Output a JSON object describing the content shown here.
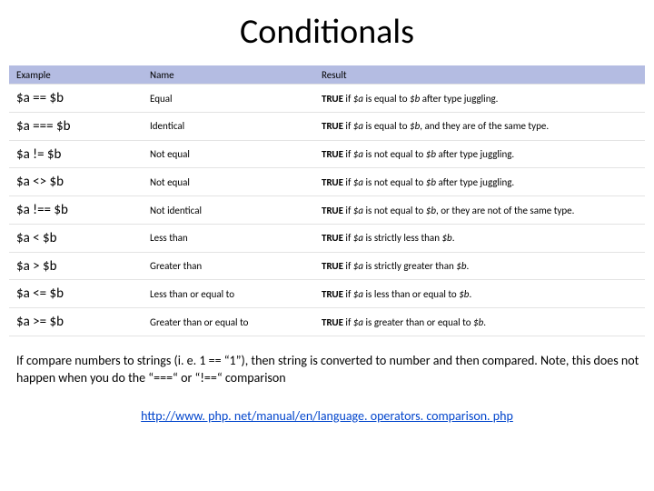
{
  "title": "Conditionals",
  "columns": [
    "Example",
    "Name",
    "Result"
  ],
  "rows": [
    {
      "example": "$a == $b",
      "name": "Equal",
      "result_lead": "TRUE",
      "result_t1": " if ",
      "result_v1": "$a",
      "result_t2": " is equal to ",
      "result_v2": "$b",
      "result_tail": " after type juggling."
    },
    {
      "example": "$a === $b",
      "name": "Identical",
      "result_lead": "TRUE",
      "result_t1": " if ",
      "result_v1": "$a",
      "result_t2": " is equal to ",
      "result_v2": "$b",
      "result_tail": ", and they are of the same type."
    },
    {
      "example": "$a != $b",
      "name": "Not equal",
      "result_lead": "TRUE",
      "result_t1": " if ",
      "result_v1": "$a",
      "result_t2": " is not equal to ",
      "result_v2": "$b",
      "result_tail": " after type juggling."
    },
    {
      "example": "$a <> $b",
      "name": "Not equal",
      "result_lead": "TRUE",
      "result_t1": " if ",
      "result_v1": "$a",
      "result_t2": " is not equal to ",
      "result_v2": "$b",
      "result_tail": " after type juggling."
    },
    {
      "example": "$a !== $b",
      "name": "Not identical",
      "result_lead": "TRUE",
      "result_t1": " if ",
      "result_v1": "$a",
      "result_t2": " is not equal to ",
      "result_v2": "$b",
      "result_tail": ", or they are not of the same type."
    },
    {
      "example": "$a < $b",
      "name": "Less than",
      "result_lead": "TRUE",
      "result_t1": " if ",
      "result_v1": "$a",
      "result_t2": " is strictly less than ",
      "result_v2": "$b",
      "result_tail": "."
    },
    {
      "example": "$a > $b",
      "name": "Greater than",
      "result_lead": "TRUE",
      "result_t1": " if ",
      "result_v1": "$a",
      "result_t2": " is strictly greater than ",
      "result_v2": "$b",
      "result_tail": "."
    },
    {
      "example": "$a <= $b",
      "name": "Less than or equal to",
      "result_lead": "TRUE",
      "result_t1": " if ",
      "result_v1": "$a",
      "result_t2": " is less than or equal to ",
      "result_v2": "$b",
      "result_tail": "."
    },
    {
      "example": "$a >= $b",
      "name": "Greater than or equal to",
      "result_lead": "TRUE",
      "result_t1": " if ",
      "result_v1": "$a",
      "result_t2": " is greater than or equal to ",
      "result_v2": "$b",
      "result_tail": "."
    }
  ],
  "note": "If compare numbers to strings (i. e.  1 == “1”), then string is converted to number and then compared. Note, this does not happen when you do the “===“ or “!==“ comparison",
  "link_text": "http://www. php. net/manual/en/language. operators. comparison. php",
  "colors": {
    "header_bg": "#b4bce2",
    "row_border": "#e3e3e3",
    "link": "#0044cc",
    "text": "#000000",
    "background": "#ffffff"
  },
  "fonts": {
    "title_size_pt": 28,
    "example_size_pt": 11,
    "body_size_pt": 8,
    "note_size_pt": 11
  },
  "table_layout": {
    "col_widths_pct": [
      21,
      27,
      52
    ]
  }
}
